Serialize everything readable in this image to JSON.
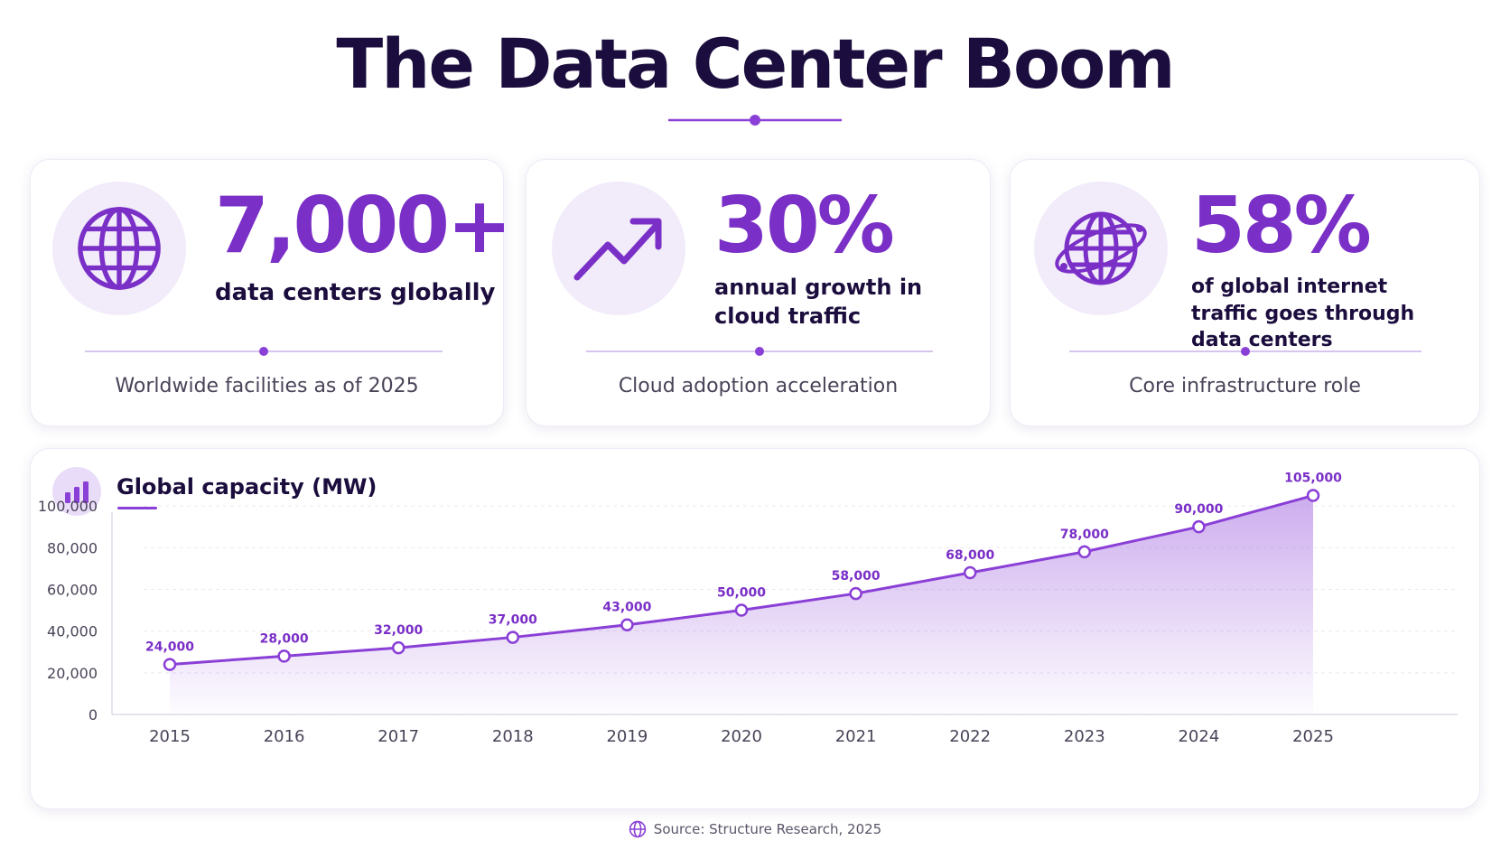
{
  "header": {
    "title": "The Data Center Boom"
  },
  "stats": [
    {
      "icon": "globe-icon",
      "value": "7,000+",
      "description": "data centers globally",
      "caption": "Worldwide facilities as of 2025"
    },
    {
      "icon": "trend-up-icon",
      "value": "30%",
      "description": "annual growth in cloud traffic",
      "caption": "Cloud adoption acceleration"
    },
    {
      "icon": "globe-orbit-icon",
      "value": "58%",
      "description": "of global internet traffic goes through data centers",
      "caption": "Core infrastructure role"
    }
  ],
  "chart_data": {
    "type": "area",
    "title": "Global capacity (MW)",
    "icon": "bar-chart-icon",
    "x": [
      "2015",
      "2016",
      "2017",
      "2018",
      "2019",
      "2020",
      "2021",
      "2022",
      "2023",
      "2024",
      "2025"
    ],
    "values": [
      24000,
      28000,
      32000,
      37000,
      43000,
      50000,
      58000,
      68000,
      78000,
      90000,
      105000
    ],
    "data_labels": [
      "24,000",
      "28,000",
      "32,000",
      "37,000",
      "43,000",
      "50,000",
      "58,000",
      "68,000",
      "78,000",
      "90,000",
      "105,000"
    ],
    "yticks": [
      0,
      20000,
      40000,
      60000,
      80000,
      100000
    ],
    "ytick_labels": [
      "0",
      "20,000",
      "40,000",
      "60,000",
      "80,000",
      "100,000"
    ],
    "ylim": [
      0,
      110000
    ],
    "grid": true,
    "legend": "none"
  },
  "footer": {
    "source": "Source: Structure Research, 2025",
    "icon": "globe-icon"
  },
  "colors": {
    "accent": "#7a2fc7",
    "line": "#8a3fd6",
    "title": "#1b0d3d",
    "icon_bg": "#f1ebfa"
  }
}
